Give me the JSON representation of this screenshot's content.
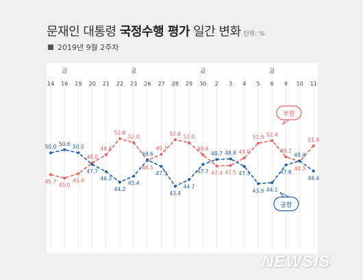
{
  "header": {
    "title_pre": "문재인 대통령 ",
    "title_bold": "국정수행 평가",
    "title_post": " 일간 변화",
    "unit": "단위: %",
    "subtitle": "2019년 9월 2주차"
  },
  "watermark": "NEWSIS",
  "colors": {
    "negative": "#e8605c",
    "positive": "#1f5fa8",
    "grid": "#dcdcdc"
  },
  "chart_data": {
    "type": "line",
    "x": [
      "14",
      "16",
      "19",
      "20",
      "21",
      "22",
      "23",
      "26",
      "27",
      "28",
      "29",
      "30",
      "2",
      "3",
      "4",
      "5",
      "6",
      "9",
      "10",
      "11"
    ],
    "friday_markers": [
      "16",
      "23",
      "30",
      "6"
    ],
    "friday_label": "금",
    "series": [
      {
        "name": "부정",
        "values": [
          45.7,
          45.0,
          45.9,
          48.0,
          49.6,
          52.8,
          52.0,
          48.5,
          49.7,
          52.6,
          52.0,
          49.6,
          47.4,
          47.5,
          49.0,
          51.9,
          52.4,
          49.2,
          48.3,
          51.4
        ]
      },
      {
        "name": "긍정",
        "values": [
          50.0,
          50.6,
          50.0,
          47.7,
          46.3,
          44.2,
          45.4,
          48.6,
          47.3,
          43.4,
          44.7,
          47.7,
          48.7,
          48.8,
          47.3,
          43.9,
          44.1,
          47.6,
          48.4,
          46.4
        ]
      }
    ],
    "label_position": {
      "부정": [
        "below",
        "below",
        "below",
        "above",
        "above",
        "above",
        "above",
        "below",
        "above",
        "above",
        "above",
        "above",
        "below",
        "below",
        "above",
        "above",
        "above",
        "above",
        "below",
        "above"
      ],
      "긍정": [
        "above",
        "above",
        "above",
        "below",
        "below",
        "below",
        "below",
        "above",
        "below",
        "below",
        "below",
        "below",
        "above",
        "above",
        "below",
        "below",
        "below",
        "below",
        "above",
        "below"
      ]
    }
  }
}
